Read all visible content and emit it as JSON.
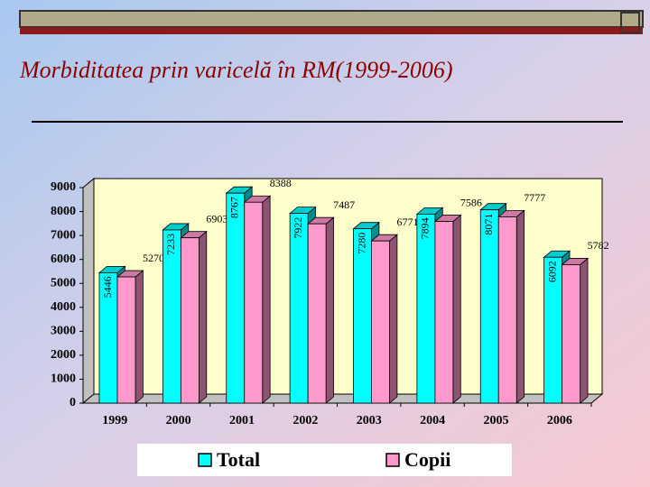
{
  "chart_data": {
    "type": "bar3d",
    "title": "Morbiditatea prin varicelă în RM(1999-2006)",
    "categories": [
      "1999",
      "2000",
      "2001",
      "2002",
      "2003",
      "2004",
      "2005",
      "2006"
    ],
    "series": [
      {
        "name": "Total",
        "color": "#00ffff",
        "values": [
          5446,
          7233,
          8767,
          7922,
          7280,
          7894,
          8071,
          6092
        ]
      },
      {
        "name": "Copii",
        "color": "#ff99cc",
        "values": [
          5270,
          6903,
          8388,
          7487,
          6771,
          7586,
          7777,
          5782
        ]
      }
    ],
    "ylim": [
      0,
      9000
    ],
    "yticks": [
      0,
      1000,
      2000,
      3000,
      4000,
      5000,
      6000,
      7000,
      8000,
      9000
    ],
    "wall_color": "#ffffcc"
  }
}
